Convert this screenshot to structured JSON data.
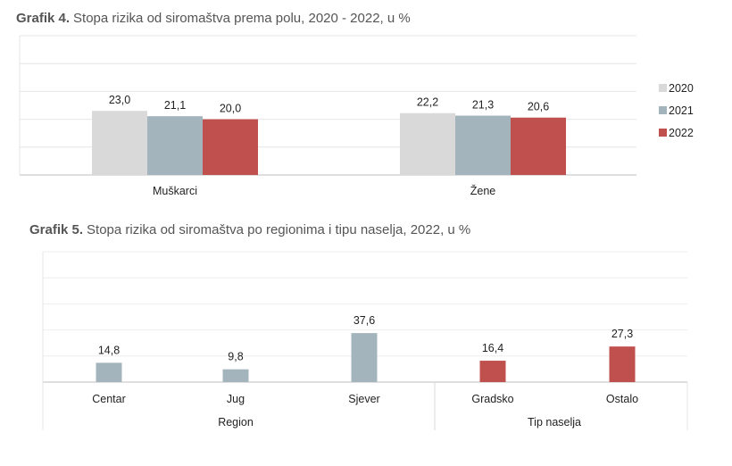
{
  "chart_data": [
    {
      "type": "bar",
      "title_prefix": "Grafik 4.",
      "title": "Stopa rizika od siromaštva prema polu, 2020 - 2022, u %",
      "categories": [
        "Muškarci",
        "Žene"
      ],
      "series": [
        {
          "name": "2020",
          "values": [
            23.0,
            22.2
          ],
          "labels": [
            "23,0",
            "22,2"
          ],
          "color": "#d9d9d9"
        },
        {
          "name": "2021",
          "values": [
            21.1,
            21.3
          ],
          "labels": [
            "21,1",
            "21,3"
          ],
          "color": "#a3b4bc"
        },
        {
          "name": "2022",
          "values": [
            20.0,
            20.6
          ],
          "labels": [
            "20,0",
            "20,6"
          ],
          "color": "#c0504d"
        }
      ],
      "ylim": [
        0,
        50
      ],
      "grid": true,
      "legend": "right"
    },
    {
      "type": "bar",
      "title_prefix": "Grafik 5.",
      "title": "Stopa rizika od siromaštva po regionima i tipu naselja, 2022, u %",
      "categories": [
        "Centar",
        "Jug",
        "Sjever",
        "Gradsko",
        "Ostalo"
      ],
      "values": [
        14.8,
        9.8,
        37.6,
        16.4,
        27.3
      ],
      "labels": [
        "14,8",
        "9,8",
        "37,6",
        "16,4",
        "27,3"
      ],
      "colors": [
        "#a3b4bc",
        "#a3b4bc",
        "#a3b4bc",
        "#c0504d",
        "#c0504d"
      ],
      "groups": [
        {
          "name": "Region",
          "categories": [
            "Centar",
            "Jug",
            "Sjever"
          ]
        },
        {
          "name": "Tip naselja",
          "categories": [
            "Gradsko",
            "Ostalo"
          ]
        }
      ],
      "ylim": [
        0,
        100
      ],
      "grid": true
    }
  ]
}
